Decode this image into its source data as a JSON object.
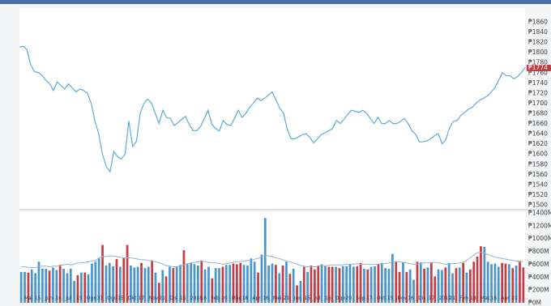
{
  "chart_data": [
    {
      "type": "line",
      "title": "",
      "xlabel": "",
      "ylabel": "",
      "ylim": [
        1500,
        1860
      ],
      "y_ticks": [
        "₱1860",
        "₱1840",
        "₱1820",
        "₱1800",
        "₱1780",
        "₱1760",
        "₱1740",
        "₱1720",
        "₱1700",
        "₱1680",
        "₱1660",
        "₱1640",
        "₱1620",
        "₱1600",
        "₱1580",
        "₱1560",
        "₱1540",
        "₱1520",
        "₱1500"
      ],
      "current_value_marker": "₱1774",
      "grid": false,
      "series": [
        {
          "color": "#5aaed6",
          "values": [
            1810,
            1812,
            1805,
            1775,
            1762,
            1760,
            1755,
            1745,
            1738,
            1725,
            1742,
            1735,
            1728,
            1738,
            1730,
            1722,
            1728,
            1725,
            1720,
            1700,
            1665,
            1640,
            1600,
            1575,
            1565,
            1605,
            1595,
            1590,
            1600,
            1665,
            1615,
            1625,
            1680,
            1700,
            1708,
            1700,
            1680,
            1660,
            1686,
            1672,
            1670,
            1656,
            1662,
            1668,
            1674,
            1658,
            1646,
            1646,
            1654,
            1670,
            1686,
            1658,
            1650,
            1645,
            1666,
            1658,
            1656,
            1670,
            1686,
            1672,
            1680,
            1692,
            1700,
            1710,
            1705,
            1710,
            1716,
            1722,
            1706,
            1690,
            1680,
            1648,
            1630,
            1630,
            1634,
            1638,
            1640,
            1632,
            1622,
            1630,
            1638,
            1642,
            1646,
            1650,
            1666,
            1660,
            1668,
            1678,
            1686,
            1684,
            1682,
            1686,
            1680,
            1670,
            1660,
            1672,
            1660,
            1660,
            1666,
            1660,
            1660,
            1664,
            1670,
            1660,
            1646,
            1638,
            1624,
            1624,
            1626,
            1630,
            1636,
            1640,
            1620,
            1628,
            1652,
            1664,
            1666,
            1676,
            1682,
            1688,
            1692,
            1700,
            1706,
            1710,
            1714,
            1722,
            1730,
            1745,
            1760,
            1754,
            1754,
            1748,
            1752,
            1760,
            1770
          ]
        }
      ]
    },
    {
      "type": "bar",
      "title": "",
      "xlabel": "",
      "ylabel": "",
      "ylim": [
        0,
        1400
      ],
      "y_ticks": [
        "₱1400M",
        "₱1200M",
        "₱1000M",
        "₱800M",
        "₱600M",
        "₱400M",
        "₱200M",
        "₱0M"
      ],
      "x_ticks": [
        "Mai",
        "15",
        "Jun",
        "16",
        "Jul",
        "15",
        "Ogo",
        "31",
        "Ogo",
        "15",
        "Okt",
        "17",
        "Nov",
        "21",
        "Dis",
        "15",
        "2018",
        "16",
        "Feb",
        "20",
        "Mac",
        "18",
        "Apr",
        "16",
        "Mei",
        "21",
        "Jun",
        "15",
        "Jul",
        "16",
        "Ogo",
        "20",
        "Sep",
        "17",
        "Okt",
        "15",
        "Nov",
        "16",
        "Dis",
        "17",
        "2017",
        "21",
        "Feb",
        "18",
        "Mac",
        "16",
        "Apr",
        "21"
      ],
      "grid": false,
      "series": [
        {
          "name": "",
          "values": [
            480,
            480,
            470,
            520,
            460,
            640,
            530,
            530,
            500,
            550,
            510,
            590,
            530,
            460,
            530,
            340,
            430,
            470,
            470,
            440,
            610,
            640,
            690,
            900,
            580,
            620,
            570,
            680,
            560,
            700,
            900,
            580,
            550,
            560,
            620,
            540,
            560,
            660,
            470,
            310,
            510,
            410,
            560,
            540,
            570,
            590,
            820,
            600,
            620,
            600,
            580,
            660,
            520,
            560,
            380,
            540,
            540,
            560,
            590,
            590,
            610,
            600,
            620,
            590,
            580,
            690,
            640,
            470,
            750,
            1320,
            580,
            610,
            590,
            460,
            580,
            640,
            450,
            530,
            270,
            340,
            560,
            480,
            580,
            520,
            580,
            600,
            570,
            560,
            560,
            560,
            540,
            570,
            570,
            600,
            560,
            570,
            620,
            530,
            520,
            560,
            570,
            600,
            620,
            540,
            530,
            760,
            640,
            480,
            630,
            480,
            520,
            360,
            640,
            630,
            530,
            550,
            620,
            410,
            520,
            510,
            550,
            620,
            460,
            540,
            550,
            620,
            470,
            520,
            640,
            720,
            880,
            870,
            640,
            600,
            610,
            560,
            620,
            610,
            600,
            540,
            580,
            640,
            550
          ],
          "up": [
            false,
            false,
            true,
            false,
            false,
            false,
            false,
            false,
            true,
            false,
            false,
            true,
            false,
            false,
            false,
            false,
            true,
            false,
            true,
            false,
            false,
            false,
            false,
            true,
            false,
            false,
            false,
            true,
            false,
            true,
            true,
            false,
            false,
            false,
            true,
            false,
            false,
            true,
            false,
            true,
            false,
            true,
            false,
            true,
            false,
            false,
            true,
            false,
            false,
            false,
            false,
            true,
            false,
            false,
            true,
            false,
            false,
            true,
            false,
            false,
            true,
            true,
            true,
            false,
            false,
            false,
            false,
            true,
            false,
            false,
            false,
            false,
            true,
            false,
            true,
            false,
            true,
            false,
            true,
            false,
            true,
            false,
            true,
            true,
            true,
            false,
            false,
            true,
            true,
            false,
            true,
            false,
            false,
            false,
            false,
            true,
            true,
            false,
            true,
            false,
            false,
            true,
            false,
            false,
            false,
            false,
            true,
            true,
            false,
            true,
            false,
            false,
            true,
            false,
            true,
            false,
            true,
            true,
            false,
            false,
            true,
            false,
            false,
            true,
            false,
            true,
            false,
            true,
            true,
            true,
            true,
            false,
            false,
            false,
            false,
            false,
            true,
            true,
            false,
            true,
            false,
            true,
            true,
            false,
            false
          ]
        },
        {
          "name": "",
          "type": "line",
          "values": [
            560,
            560,
            550,
            550,
            550,
            560,
            570,
            570,
            560,
            570,
            570,
            580,
            590,
            600,
            590,
            600,
            620,
            620,
            630,
            640,
            650,
            660,
            700,
            720,
            720,
            730,
            730,
            720,
            710,
            700,
            700,
            700,
            690,
            680,
            670,
            670,
            660,
            650,
            640,
            620,
            600,
            580,
            570,
            560,
            560,
            570,
            590,
            610,
            620,
            630,
            640,
            650,
            640,
            630,
            620,
            620,
            610,
            600,
            610,
            620,
            630,
            640,
            640,
            650,
            660,
            660,
            680,
            690,
            720,
            740,
            730,
            720,
            700,
            690,
            670,
            650,
            640,
            620,
            600,
            580,
            570,
            560,
            560,
            560,
            570,
            580,
            580,
            580,
            590,
            590,
            590,
            590,
            600,
            600,
            600,
            610,
            600,
            600,
            600,
            600,
            600,
            600,
            610,
            610,
            620,
            630,
            640,
            640,
            630,
            620,
            610,
            600,
            600,
            610,
            620,
            620,
            630,
            630,
            620,
            610,
            600,
            600,
            610,
            610,
            620,
            630,
            660,
            700,
            740,
            780,
            790,
            770,
            750,
            730,
            710,
            700,
            690,
            680,
            670,
            660,
            650,
            650,
            640
          ]
        }
      ]
    }
  ],
  "colors": {
    "up": "#c53c45",
    "down": "#4a96cc",
    "line": "#5aaed6",
    "marker": "#c53c45"
  }
}
